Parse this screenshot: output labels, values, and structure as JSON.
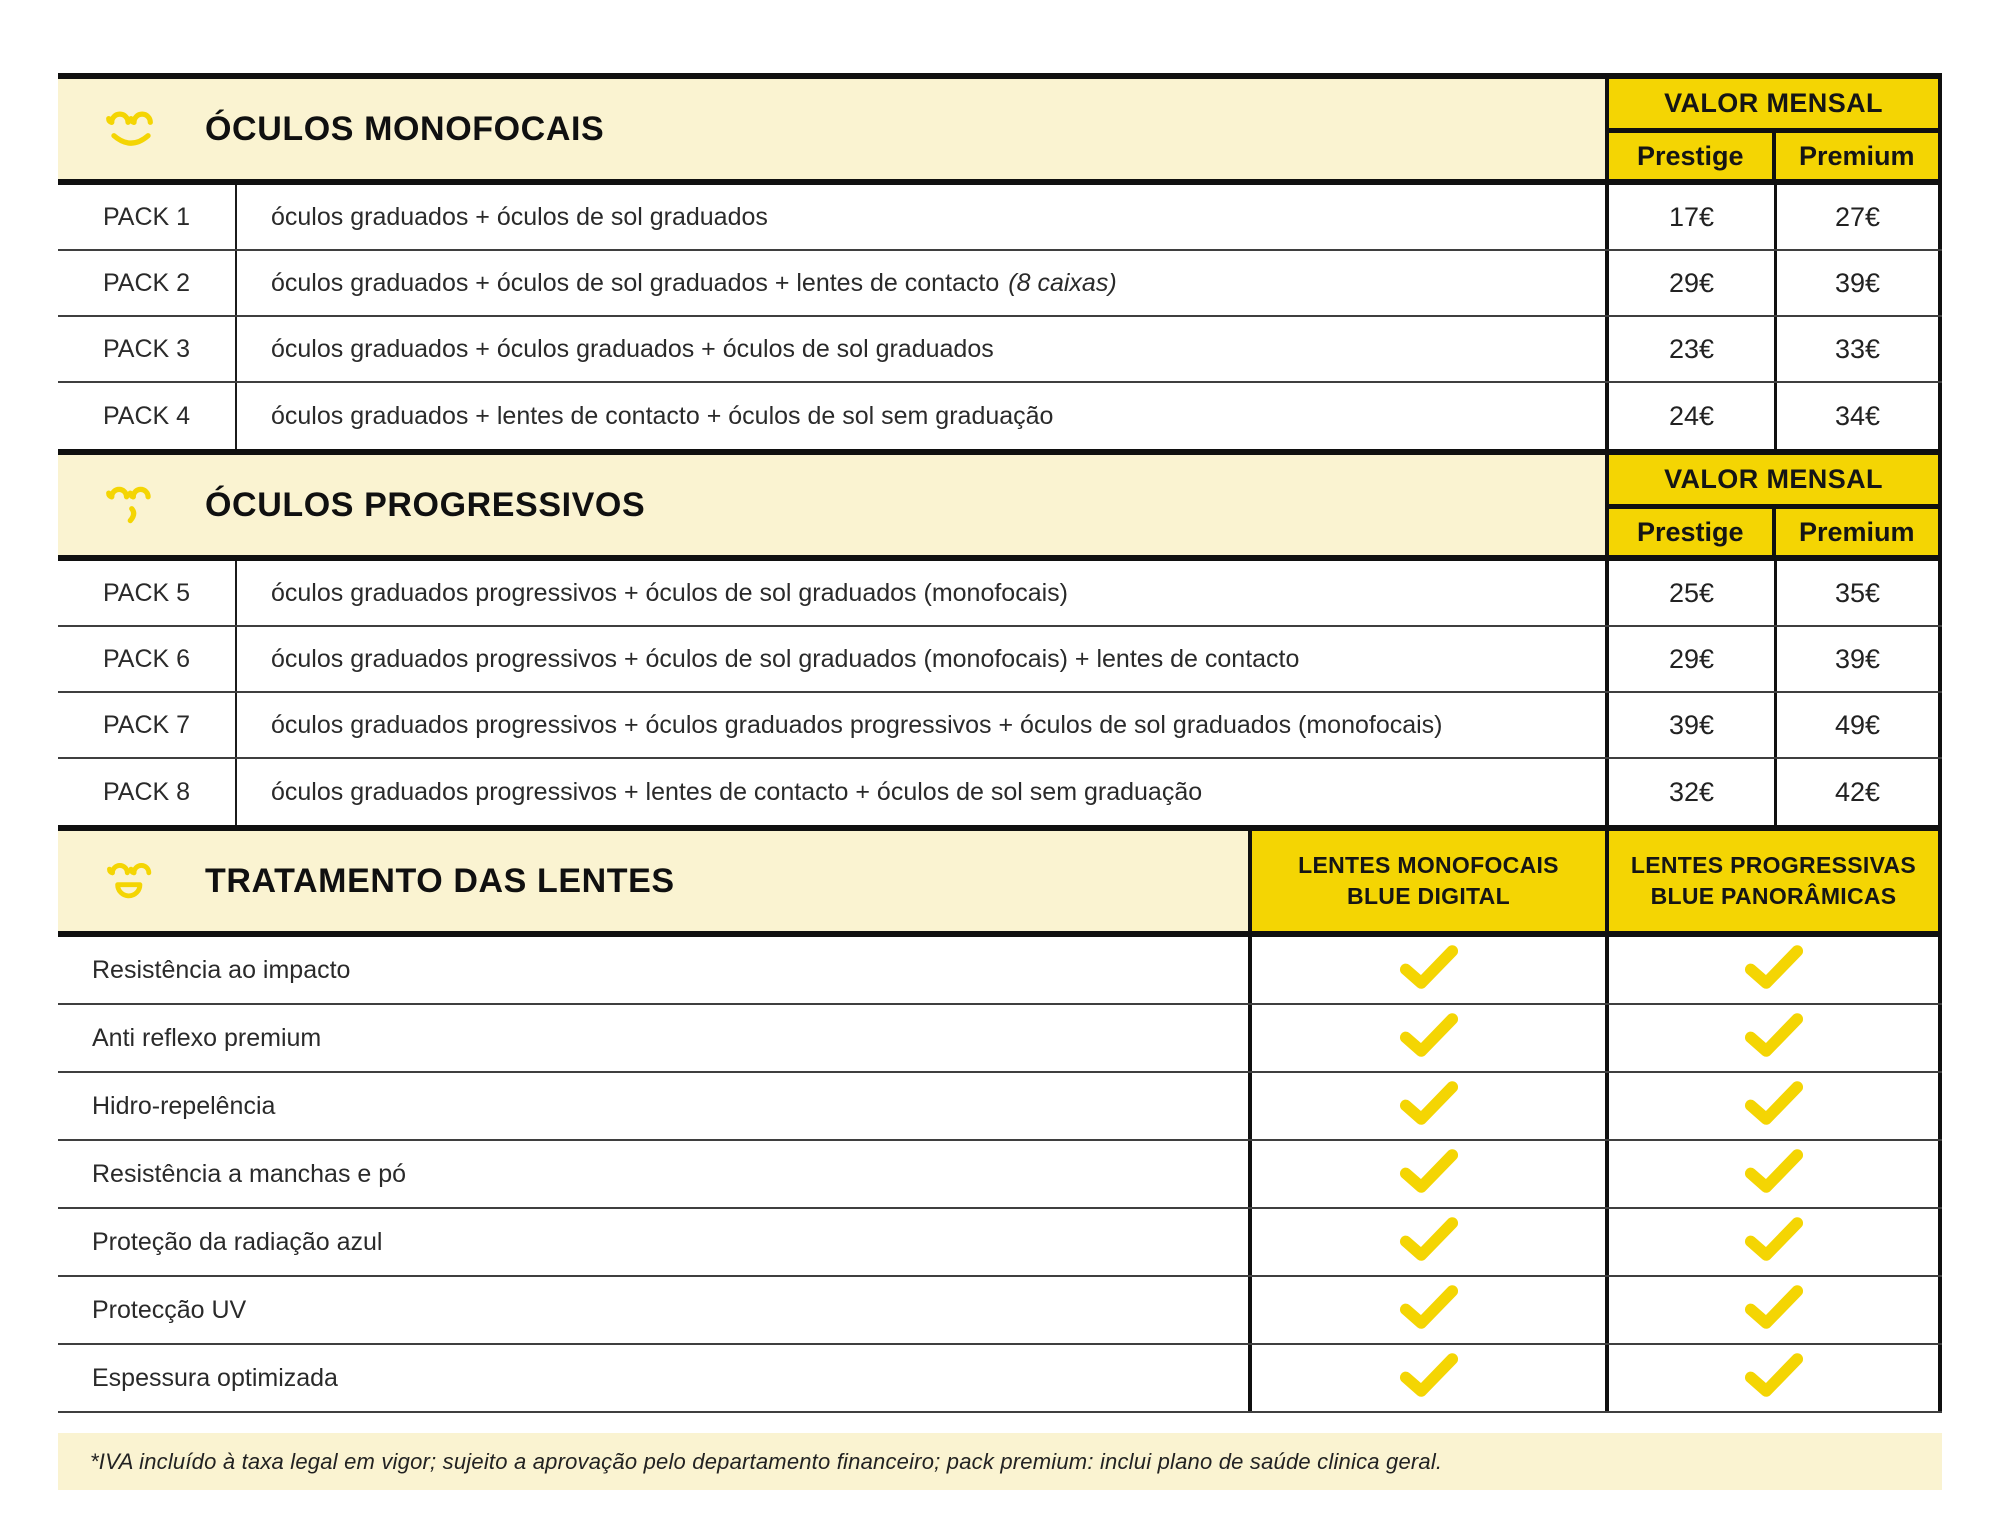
{
  "colors": {
    "yellow": "#F4D503",
    "cream": "#FAF3D1",
    "ink": "#151515",
    "line": "#101010",
    "divider": "#3f3f3f",
    "white": "#ffffff"
  },
  "sections": [
    {
      "title": "ÓCULOS MONOFOCAIS",
      "icon": "glasses-smile-icon",
      "price_header": {
        "title": "VALOR MENSAL",
        "col1": "Prestige",
        "col2": "Premium"
      },
      "rows": [
        {
          "pack": "PACK 1",
          "description": "óculos graduados + óculos de sol graduados",
          "prestige": "17€",
          "premium": "27€"
        },
        {
          "pack": "PACK 2",
          "description": "óculos graduados + óculos de sol graduados + lentes de contacto",
          "note": "(8 caixas)",
          "prestige": "29€",
          "premium": "39€"
        },
        {
          "pack": "PACK 3",
          "description": "óculos graduados + óculos graduados + óculos de sol graduados",
          "prestige": "23€",
          "premium": "33€"
        },
        {
          "pack": "PACK 4",
          "description": "óculos graduados + lentes de contacto + óculos de sol sem graduação",
          "prestige": "24€",
          "premium": "34€"
        }
      ]
    },
    {
      "title": "ÓCULOS PROGRESSIVOS",
      "icon": "glasses-quirk-icon",
      "price_header": {
        "title": "VALOR MENSAL",
        "col1": "Prestige",
        "col2": "Premium"
      },
      "rows": [
        {
          "pack": "PACK 5",
          "description": "óculos graduados progressivos + óculos de sol graduados (monofocais)",
          "prestige": "25€",
          "premium": "35€"
        },
        {
          "pack": "PACK 6",
          "description": "óculos graduados progressivos + óculos de sol graduados (monofocais) + lentes de contacto",
          "prestige": "29€",
          "premium": "39€"
        },
        {
          "pack": "PACK 7",
          "description": "óculos graduados progressivos + óculos graduados progressivos + óculos de sol graduados (monofocais)",
          "prestige": "39€",
          "premium": "49€"
        },
        {
          "pack": "PACK 8",
          "description": "óculos graduados progressivos + lentes de contacto + óculos de sol sem graduação",
          "prestige": "32€",
          "premium": "42€"
        }
      ]
    }
  ],
  "treatments": {
    "title": "TRATAMENTO DAS LENTES",
    "icon": "glasses-laugh-icon",
    "columns": [
      {
        "line1": "LENTES MONOFOCAIS",
        "line2": "BLUE DIGITAL"
      },
      {
        "line1": "LENTES PROGRESSIVAS",
        "line2": "BLUE PANORÂMICAS"
      }
    ],
    "rows": [
      {
        "label": "Resistência ao impacto",
        "monofocais": true,
        "progressivas": true
      },
      {
        "label": "Anti reflexo premium",
        "monofocais": true,
        "progressivas": true
      },
      {
        "label": "Hidro-repelência",
        "monofocais": true,
        "progressivas": true
      },
      {
        "label": "Resistência a manchas e pó",
        "monofocais": true,
        "progressivas": true
      },
      {
        "label": "Proteção da radiação azul",
        "monofocais": true,
        "progressivas": true
      },
      {
        "label": "Protecção UV",
        "monofocais": true,
        "progressivas": true
      },
      {
        "label": "Espessura optimizada",
        "monofocais": true,
        "progressivas": true
      }
    ]
  },
  "footer": {
    "note": "*IVA incluído à taxa legal em vigor; sujeito a aprovação pelo departamento financeiro; pack premium: inclui plano de saúde clinica geral."
  }
}
